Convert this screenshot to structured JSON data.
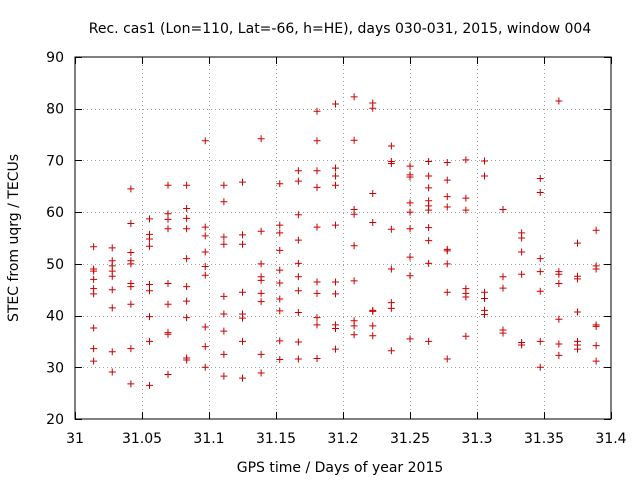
{
  "chart_data": {
    "type": "scatter",
    "title": "Rec. cas1 (Lon=110, Lat=-66, h=HE), days 030-031, 2015, window 004",
    "xlabel": "GPS time / Days of year 2015",
    "ylabel": "STEC from uqrg / TECUs",
    "xlim": [
      31,
      31.4
    ],
    "ylim": [
      20,
      90
    ],
    "grid": true,
    "marker": "+",
    "color": "#cc0000",
    "x_ticks": [
      31,
      31.05,
      31.1,
      31.15,
      31.2,
      31.25,
      31.3,
      31.35,
      31.4
    ],
    "x_tick_labels": [
      "31",
      "31.05",
      "31.1",
      "31.15",
      "31.2",
      "31.25",
      "31.3",
      "31.35",
      "31.4"
    ],
    "y_ticks": [
      20,
      30,
      40,
      50,
      60,
      70,
      80,
      90
    ],
    "y_tick_labels": [
      "20",
      "30",
      "40",
      "50",
      "60",
      "70",
      "80",
      "90"
    ],
    "series": [
      {
        "name": "STEC",
        "points": [
          [
            31.0139,
            53.3
          ],
          [
            31.0139,
            49.0
          ],
          [
            31.0139,
            48.6
          ],
          [
            31.0139,
            47.0
          ],
          [
            31.0139,
            45.2
          ],
          [
            31.0139,
            44.2
          ],
          [
            31.0139,
            37.6
          ],
          [
            31.0139,
            33.6
          ],
          [
            31.0139,
            31.2
          ],
          [
            31.0278,
            53.1
          ],
          [
            31.0278,
            50.6
          ],
          [
            31.0278,
            49.6
          ],
          [
            31.0278,
            48.6
          ],
          [
            31.0278,
            47.6
          ],
          [
            31.0278,
            45.0
          ],
          [
            31.0278,
            41.5
          ],
          [
            31.0278,
            33.0
          ],
          [
            31.0278,
            29.1
          ],
          [
            31.0417,
            64.5
          ],
          [
            31.0417,
            57.8
          ],
          [
            31.0417,
            52.2
          ],
          [
            31.0417,
            50.6
          ],
          [
            31.0417,
            50.0
          ],
          [
            31.0417,
            46.2
          ],
          [
            31.0417,
            45.6
          ],
          [
            31.0417,
            42.2
          ],
          [
            31.0417,
            33.6
          ],
          [
            31.0417,
            26.8
          ],
          [
            31.0556,
            58.7
          ],
          [
            31.0556,
            55.7
          ],
          [
            31.0556,
            54.8
          ],
          [
            31.0556,
            53.4
          ],
          [
            31.0556,
            46.0
          ],
          [
            31.0556,
            44.8
          ],
          [
            31.0556,
            39.8
          ],
          [
            31.0556,
            35.0
          ],
          [
            31.0556,
            26.5
          ],
          [
            31.0694,
            65.2
          ],
          [
            31.0694,
            59.7
          ],
          [
            31.0694,
            58.6
          ],
          [
            31.0694,
            56.8
          ],
          [
            31.0694,
            46.2
          ],
          [
            31.0694,
            42.2
          ],
          [
            31.0694,
            36.7
          ],
          [
            31.0694,
            36.4
          ],
          [
            31.0694,
            28.6
          ],
          [
            31.0833,
            65.2
          ],
          [
            31.0833,
            60.7
          ],
          [
            31.0833,
            58.8
          ],
          [
            31.0833,
            56.8
          ],
          [
            31.0833,
            51.0
          ],
          [
            31.0833,
            45.6
          ],
          [
            31.0833,
            42.8
          ],
          [
            31.0833,
            39.6
          ],
          [
            31.0833,
            31.8
          ],
          [
            31.0833,
            31.4
          ],
          [
            31.0972,
            73.8
          ],
          [
            31.0972,
            57.1
          ],
          [
            31.0972,
            55.4
          ],
          [
            31.0972,
            52.3
          ],
          [
            31.0972,
            49.5
          ],
          [
            31.0972,
            47.8
          ],
          [
            31.0972,
            37.8
          ],
          [
            31.0972,
            34.0
          ],
          [
            31.0972,
            30.0
          ],
          [
            31.1111,
            65.2
          ],
          [
            31.1111,
            62.0
          ],
          [
            31.1111,
            55.2
          ],
          [
            31.1111,
            53.8
          ],
          [
            31.1111,
            43.7
          ],
          [
            31.1111,
            40.3
          ],
          [
            31.1111,
            37.0
          ],
          [
            31.1111,
            32.5
          ],
          [
            31.1111,
            28.3
          ],
          [
            31.125,
            65.8
          ],
          [
            31.125,
            55.6
          ],
          [
            31.125,
            53.8
          ],
          [
            31.125,
            44.5
          ],
          [
            31.125,
            40.3
          ],
          [
            31.125,
            39.5
          ],
          [
            31.125,
            35.0
          ],
          [
            31.125,
            27.9
          ],
          [
            31.1389,
            74.2
          ],
          [
            31.1389,
            56.3
          ],
          [
            31.1389,
            50.0
          ],
          [
            31.1389,
            47.5
          ],
          [
            31.1389,
            46.8
          ],
          [
            31.1389,
            44.3
          ],
          [
            31.1389,
            42.7
          ],
          [
            31.1389,
            32.5
          ],
          [
            31.1389,
            28.9
          ],
          [
            31.1528,
            65.5
          ],
          [
            31.1528,
            57.5
          ],
          [
            31.1528,
            56.0
          ],
          [
            31.1528,
            52.6
          ],
          [
            31.1528,
            48.8
          ],
          [
            31.1528,
            46.3
          ],
          [
            31.1528,
            43.2
          ],
          [
            31.1528,
            40.9
          ],
          [
            31.1528,
            35.1
          ],
          [
            31.1528,
            31.5
          ],
          [
            31.1667,
            68.0
          ],
          [
            31.1667,
            66.0
          ],
          [
            31.1667,
            59.5
          ],
          [
            31.1667,
            54.6
          ],
          [
            31.1667,
            50.1
          ],
          [
            31.1667,
            47.5
          ],
          [
            31.1667,
            44.8
          ],
          [
            31.1667,
            40.6
          ],
          [
            31.1667,
            34.9
          ],
          [
            31.1667,
            31.6
          ],
          [
            31.1806,
            79.5
          ],
          [
            31.1806,
            73.8
          ],
          [
            31.1806,
            68.0
          ],
          [
            31.1806,
            64.8
          ],
          [
            31.1806,
            57.1
          ],
          [
            31.1806,
            46.5
          ],
          [
            31.1806,
            44.3
          ],
          [
            31.1806,
            39.6
          ],
          [
            31.1806,
            38.2
          ],
          [
            31.1806,
            31.7
          ],
          [
            31.1944,
            80.9
          ],
          [
            31.1944,
            68.5
          ],
          [
            31.1944,
            67.0
          ],
          [
            31.1944,
            65.2
          ],
          [
            31.1944,
            57.5
          ],
          [
            31.1944,
            46.5
          ],
          [
            31.1944,
            44.2
          ],
          [
            31.1944,
            38.2
          ],
          [
            31.1944,
            37.5
          ],
          [
            31.1944,
            33.5
          ],
          [
            31.2083,
            82.3
          ],
          [
            31.2083,
            73.9
          ],
          [
            31.2083,
            60.5
          ],
          [
            31.2083,
            59.6
          ],
          [
            31.2083,
            53.5
          ],
          [
            31.2083,
            46.7
          ],
          [
            31.2083,
            39.0
          ],
          [
            31.2083,
            38.0
          ],
          [
            31.2083,
            36.3
          ],
          [
            31.2222,
            81.1
          ],
          [
            31.2222,
            80.1
          ],
          [
            31.2222,
            63.6
          ],
          [
            31.2222,
            58.0
          ],
          [
            31.2222,
            41.0
          ],
          [
            31.2222,
            40.8
          ],
          [
            31.2222,
            38.0
          ],
          [
            31.2222,
            36.1
          ],
          [
            31.2361,
            72.8
          ],
          [
            31.2361,
            69.8
          ],
          [
            31.2361,
            69.4
          ],
          [
            31.2361,
            56.7
          ],
          [
            31.2361,
            49.0
          ],
          [
            31.2361,
            42.5
          ],
          [
            31.2361,
            41.4
          ],
          [
            31.2361,
            33.2
          ],
          [
            31.25,
            68.9
          ],
          [
            31.25,
            67.2
          ],
          [
            31.25,
            66.8
          ],
          [
            31.25,
            61.8
          ],
          [
            31.25,
            60.0
          ],
          [
            31.25,
            56.8
          ],
          [
            31.25,
            51.3
          ],
          [
            31.25,
            47.7
          ],
          [
            31.25,
            35.5
          ],
          [
            31.2639,
            69.8
          ],
          [
            31.2639,
            67.0
          ],
          [
            31.2639,
            64.7
          ],
          [
            31.2639,
            62.2
          ],
          [
            31.2639,
            61.2
          ],
          [
            31.2639,
            60.4
          ],
          [
            31.2639,
            57.0
          ],
          [
            31.2639,
            54.5
          ],
          [
            31.2639,
            50.1
          ],
          [
            31.2639,
            35.0
          ],
          [
            31.2778,
            69.6
          ],
          [
            31.2778,
            66.2
          ],
          [
            31.2778,
            63.0
          ],
          [
            31.2778,
            61.0
          ],
          [
            31.2778,
            52.8
          ],
          [
            31.2778,
            52.5
          ],
          [
            31.2778,
            50.0
          ],
          [
            31.2778,
            44.5
          ],
          [
            31.2778,
            31.6
          ],
          [
            31.2917,
            70.1
          ],
          [
            31.2917,
            62.7
          ],
          [
            31.2917,
            60.4
          ],
          [
            31.2917,
            45.2
          ],
          [
            31.2917,
            44.3
          ],
          [
            31.2917,
            43.6
          ],
          [
            31.2917,
            36.0
          ],
          [
            31.3056,
            69.9
          ],
          [
            31.3056,
            67.0
          ],
          [
            31.3056,
            44.5
          ],
          [
            31.3056,
            43.3
          ],
          [
            31.3056,
            41.0
          ],
          [
            31.3056,
            40.2
          ],
          [
            31.3194,
            60.5
          ],
          [
            31.3194,
            47.5
          ],
          [
            31.3194,
            45.3
          ],
          [
            31.3194,
            37.2
          ],
          [
            31.3194,
            36.6
          ],
          [
            31.3333,
            56.0
          ],
          [
            31.3333,
            55.0
          ],
          [
            31.3333,
            52.3
          ],
          [
            31.3333,
            48.0
          ],
          [
            31.3333,
            34.8
          ],
          [
            31.3333,
            34.3
          ],
          [
            31.3472,
            66.5
          ],
          [
            31.3472,
            63.8
          ],
          [
            31.3472,
            51.0
          ],
          [
            31.3472,
            48.5
          ],
          [
            31.3472,
            44.7
          ],
          [
            31.3472,
            35.0
          ],
          [
            31.3472,
            30.0
          ],
          [
            31.3611,
            81.5
          ],
          [
            31.3611,
            48.5
          ],
          [
            31.3611,
            48.0
          ],
          [
            31.3611,
            46.2
          ],
          [
            31.3611,
            39.3
          ],
          [
            31.3611,
            34.5
          ],
          [
            31.3611,
            32.3
          ],
          [
            31.375,
            54.0
          ],
          [
            31.375,
            47.6
          ],
          [
            31.375,
            47.1
          ],
          [
            31.375,
            40.7
          ],
          [
            31.375,
            35.0
          ],
          [
            31.375,
            34.3
          ],
          [
            31.375,
            33.5
          ],
          [
            31.3889,
            56.5
          ],
          [
            31.3889,
            49.6
          ],
          [
            31.3889,
            49.0
          ],
          [
            31.3889,
            38.2
          ],
          [
            31.3889,
            37.9
          ],
          [
            31.3889,
            34.2
          ],
          [
            31.3889,
            31.2
          ]
        ]
      }
    ]
  }
}
